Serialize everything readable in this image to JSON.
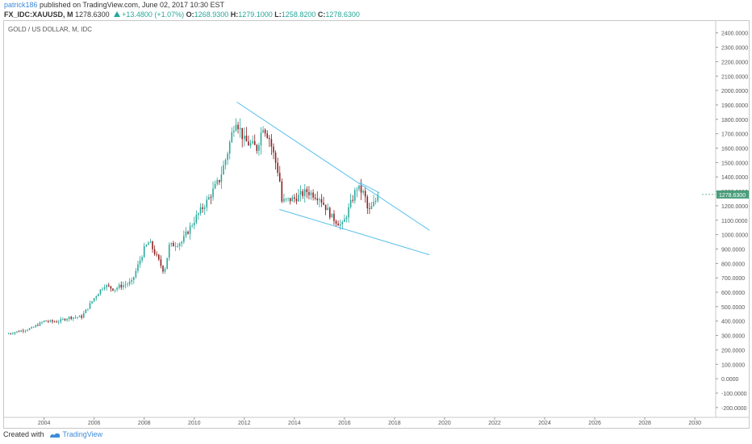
{
  "header": {
    "user": "patrick186",
    "published": "published on TradingView.com, June 02, 2017 10:30 EST",
    "symbol": "FX_IDC:XAUUSD, M",
    "last": "1278.6300",
    "change": "+13.4800 (+1.07%)",
    "o_label": "O:",
    "o_value": "1268.9300",
    "h_label": "H:",
    "h_value": "1279.1000",
    "l_label": "L:",
    "l_value": "1258.8200",
    "c_label": "C:",
    "c_value": "1278.6300"
  },
  "colors": {
    "up": "#26a69a",
    "down": "#8b1c1c",
    "trendline": "#5bc0eb",
    "price_tag": "#4a9e7c",
    "accent": "#3d8bd8"
  },
  "footer": {
    "created_with": "Created with",
    "brand": "TradingView",
    "brand_icon": "tradingview-logo-icon"
  },
  "chart_data": {
    "type": "candlestick",
    "title": "GOLD / US DOLLAR, M, IDC",
    "interval": "monthly",
    "x_ticks": [
      "2004",
      "2006",
      "2008",
      "2010",
      "2012",
      "2014",
      "2016",
      "2018",
      "2020",
      "2022",
      "2024",
      "2026",
      "2028",
      "2030"
    ],
    "y_ticks": [
      "2400.0000",
      "2300.0000",
      "2200.0000",
      "2100.0000",
      "2000.0000",
      "1900.0000",
      "1800.0000",
      "1700.0000",
      "1600.0000",
      "1500.0000",
      "1400.0000",
      "1300.0000",
      "1200.0000",
      "1100.0000",
      "1000.0000",
      "900.0000",
      "800.0000",
      "700.0000",
      "600.0000",
      "500.0000",
      "400.0000",
      "300.0000",
      "200.0000",
      "100.0000",
      "0.0000",
      "-100.0000",
      "-200.0000"
    ],
    "ylim": [
      -240,
      2460
    ],
    "xlim": [
      2002.4,
      2030.8
    ],
    "last_price_label": "1278.6300",
    "last_price": 1278.63,
    "grid": false,
    "yearly_path": [
      [
        2002.5,
        310
      ],
      [
        2003.0,
        330
      ],
      [
        2003.5,
        350
      ],
      [
        2004.0,
        400
      ],
      [
        2004.5,
        395
      ],
      [
        2005.0,
        425
      ],
      [
        2005.5,
        430
      ],
      [
        2006.0,
        560
      ],
      [
        2006.4,
        650
      ],
      [
        2006.8,
        620
      ],
      [
        2007.0,
        640
      ],
      [
        2007.5,
        670
      ],
      [
        2008.0,
        900
      ],
      [
        2008.2,
        950
      ],
      [
        2008.8,
        740
      ],
      [
        2009.0,
        920
      ],
      [
        2009.5,
        950
      ],
      [
        2010.0,
        1100
      ],
      [
        2010.5,
        1230
      ],
      [
        2011.0,
        1380
      ],
      [
        2011.3,
        1550
      ],
      [
        2011.65,
        1810
      ],
      [
        2012.0,
        1650
      ],
      [
        2012.5,
        1600
      ],
      [
        2012.75,
        1760
      ],
      [
        2013.0,
        1670
      ],
      [
        2013.4,
        1400
      ],
      [
        2013.5,
        1230
      ],
      [
        2014.0,
        1250
      ],
      [
        2014.5,
        1300
      ],
      [
        2015.0,
        1260
      ],
      [
        2015.5,
        1120
      ],
      [
        2015.9,
        1060
      ],
      [
        2016.0,
        1100
      ],
      [
        2016.5,
        1330
      ],
      [
        2016.8,
        1280
      ],
      [
        2016.95,
        1150
      ],
      [
        2017.4,
        1278.63
      ]
    ],
    "drawings": [
      {
        "name": "upper-trendline",
        "points": [
          [
            2011.7,
            1920
          ],
          [
            2019.4,
            1030
          ]
        ]
      },
      {
        "name": "lower-trendline",
        "points": [
          [
            2013.4,
            1175
          ],
          [
            2019.4,
            860
          ]
        ]
      },
      {
        "name": "wedge-right-edge",
        "points": [
          [
            2016.6,
            1362
          ],
          [
            2017.4,
            1290
          ]
        ]
      }
    ]
  }
}
